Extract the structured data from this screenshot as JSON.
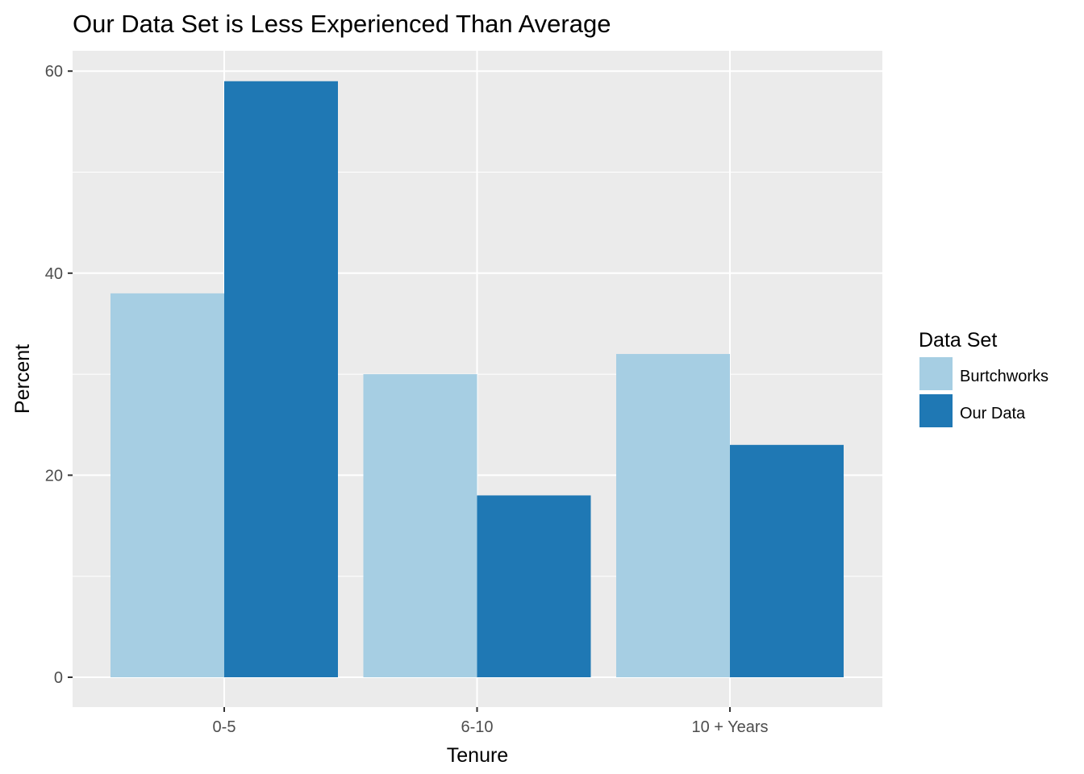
{
  "chart_data": {
    "type": "bar",
    "title": "Our Data Set is Less Experienced Than Average",
    "xlabel": "Tenure",
    "ylabel": "Percent",
    "categories": [
      "0-5",
      "6-10",
      "10 + Years"
    ],
    "series": [
      {
        "name": "Burtchworks",
        "values": [
          38,
          30,
          32
        ],
        "color": "#a6cee3"
      },
      {
        "name": "Our Data",
        "values": [
          59,
          18,
          23
        ],
        "color": "#1f78b4"
      }
    ],
    "ylim": [
      0,
      62.9
    ],
    "yticks": [
      0,
      20,
      40,
      60
    ],
    "ytick_labels": [
      "0",
      "20",
      "40",
      "60"
    ],
    "grid": true,
    "panel_background": "#ebebeb",
    "legend": {
      "title": "Data Set",
      "position": "right"
    }
  }
}
